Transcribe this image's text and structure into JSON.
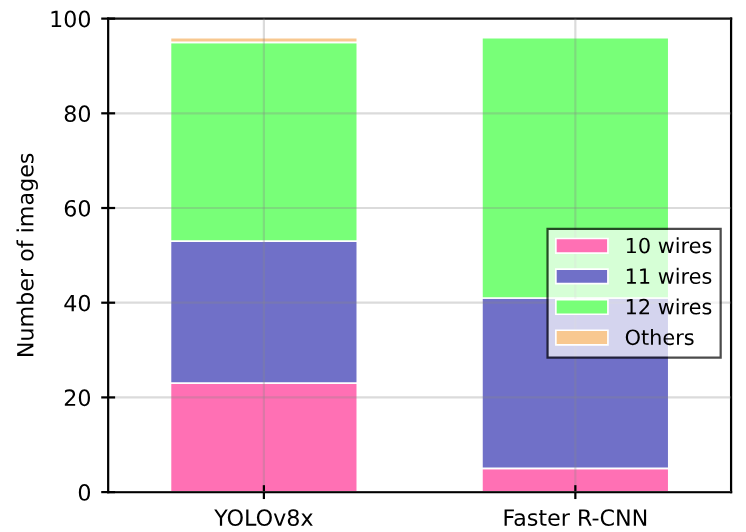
{
  "chart_data": {
    "type": "bar",
    "stacked": true,
    "ylabel": "Number of images",
    "categories": [
      "YOLOv8x",
      "Faster R-CNN"
    ],
    "series": [
      {
        "name": "10 wires",
        "color": "#ff70b4",
        "values": [
          23,
          5
        ]
      },
      {
        "name": "11 wires",
        "color": "#7070c8",
        "values": [
          30,
          36
        ]
      },
      {
        "name": "12 wires",
        "color": "#78ff78",
        "values": [
          42,
          55
        ]
      },
      {
        "name": "Others",
        "color": "#f8c890",
        "values": [
          1,
          0
        ]
      }
    ],
    "ylim": [
      0,
      100
    ],
    "yticks": [
      0,
      20,
      40,
      60,
      80,
      100
    ],
    "grid": true,
    "legend": "right"
  }
}
